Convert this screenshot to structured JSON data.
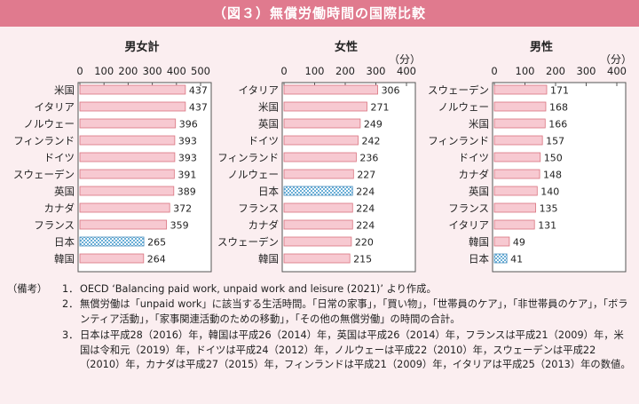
{
  "title": "（図３）無償労働時間の国際比較",
  "colors": {
    "title_bg": "#e07a8e",
    "bar_fill": "#f7c9d1",
    "bar_stroke": "#d9747f",
    "japan_fill": "#ffffff",
    "japan_pattern": "#6aaed6",
    "panel_bg": "#ffffff",
    "page_bg": "#fbeef0"
  },
  "chart_data": [
    {
      "type": "bar",
      "orientation": "horizontal",
      "title": "男女計",
      "unit": "（分）",
      "xlim": [
        0,
        500
      ],
      "ticks": [
        "0",
        "100",
        "200",
        "300",
        "400",
        "500"
      ],
      "highlight": "日本",
      "categories": [
        "米国",
        "イタリア",
        "ノルウェー",
        "フィンランド",
        "ドイツ",
        "スウェーデン",
        "英国",
        "カナダ",
        "フランス",
        "日本",
        "韓国"
      ],
      "values": [
        437,
        437,
        396,
        393,
        393,
        391,
        389,
        372,
        359,
        265,
        264
      ],
      "labels": [
        "437",
        "437",
        "396",
        "393",
        "393",
        "391",
        "389",
        "372",
        "359",
        "265",
        "264"
      ]
    },
    {
      "type": "bar",
      "orientation": "horizontal",
      "title": "女性",
      "unit": "（分）",
      "xlim": [
        0,
        400
      ],
      "ticks": [
        "0",
        "100",
        "200",
        "300",
        "400"
      ],
      "highlight": "日本",
      "categories": [
        "イタリア",
        "米国",
        "英国",
        "ドイツ",
        "フィンランド",
        "ノルウェー",
        "日本",
        "フランス",
        "カナダ",
        "スウェーデン",
        "韓国"
      ],
      "values": [
        306,
        271,
        249,
        242,
        236,
        227,
        224,
        224,
        224,
        220,
        215
      ],
      "labels": [
        "306",
        "271",
        "249",
        "242",
        "236",
        "227",
        "224",
        "224",
        "224",
        "220",
        "215"
      ]
    },
    {
      "type": "bar",
      "orientation": "horizontal",
      "title": "男性",
      "unit": "（分）",
      "xlim": [
        0,
        400
      ],
      "ticks": [
        "0",
        "100",
        "200",
        "300",
        "400"
      ],
      "highlight": "日本",
      "categories": [
        "スウェーデン",
        "ノルウェー",
        "米国",
        "フィンランド",
        "ドイツ",
        "カナダ",
        "英国",
        "フランス",
        "イタリア",
        "韓国",
        "日本"
      ],
      "values": [
        171,
        168,
        166,
        157,
        150,
        148,
        140,
        135,
        131,
        49,
        41
      ],
      "labels": [
        "171",
        "168",
        "166",
        "157",
        "150",
        "148",
        "140",
        "135",
        "131",
        "49",
        "41"
      ]
    }
  ],
  "notes": {
    "head": "（備考）",
    "items": [
      {
        "num": "1．",
        "text": "OECD ‘Balancing paid work, unpaid work and leisure (2021)’ より作成。"
      },
      {
        "num": "2．",
        "text": "無償労働は「unpaid work」に該当する生活時間。「日常の家事」，「買い物」，「世帯員のケア」，「非世帯員のケア」，「ボランティア活動」，「家事関連活動のための移動」，「その他の無償労働」の時間の合計。"
      },
      {
        "num": "3．",
        "text": "日本は平成28（2016）年，韓国は平成26（2014）年，英国は平成26（2014）年，フランスは平成21（2009）年，米国は令和元（2019）年，ドイツは平成24（2012）年，ノルウェーは平成22（2010）年，スウェーデンは平成22（2010）年，カナダは平成27（2015）年，フィンランドは平成21（2009）年，イタリアは平成25（2013）年の数値。"
      }
    ]
  }
}
